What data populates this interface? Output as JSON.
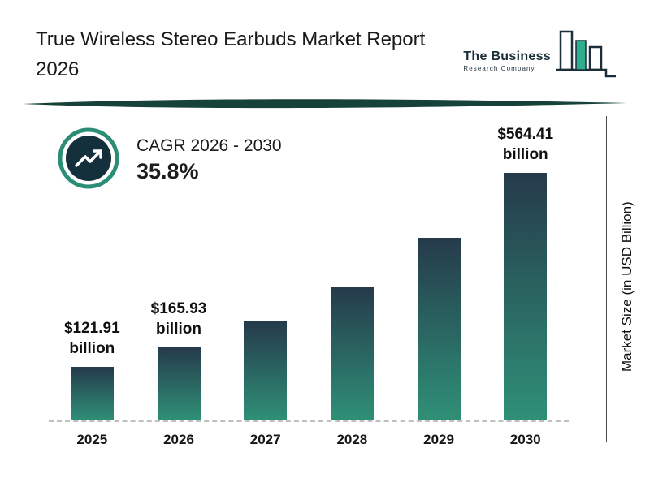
{
  "header": {
    "title": "True Wireless Stereo Earbuds Market Report 2026",
    "logo": {
      "name": "The Business",
      "subtitle": "Research Company"
    }
  },
  "cagr": {
    "label": "CAGR 2026 - 2030",
    "value": "35.8%"
  },
  "chart_data": {
    "type": "bar",
    "title": "True Wireless Stereo Earbuds Market Report 2026",
    "categories": [
      "2025",
      "2026",
      "2027",
      "2028",
      "2029",
      "2030"
    ],
    "values": [
      121.91,
      165.93,
      225.33,
      305.99,
      415.54,
      564.41
    ],
    "value_labels": [
      "$121.91 billion",
      "$165.93 billion",
      null,
      null,
      null,
      "$564.41 billion"
    ],
    "xlabel": "",
    "ylabel": "Market Size (in USD Billion)",
    "ylim": [
      0,
      564.41
    ],
    "legend": "none",
    "grid": "off",
    "baseline_style": "dashed"
  },
  "colors": {
    "bar_top": "#253a4b",
    "bar_bottom": "#2f9077",
    "accent_teal": "#2c8d76",
    "divider": "#16423a",
    "icon_inner": "#14303d",
    "ink": "#1c1c1c"
  }
}
